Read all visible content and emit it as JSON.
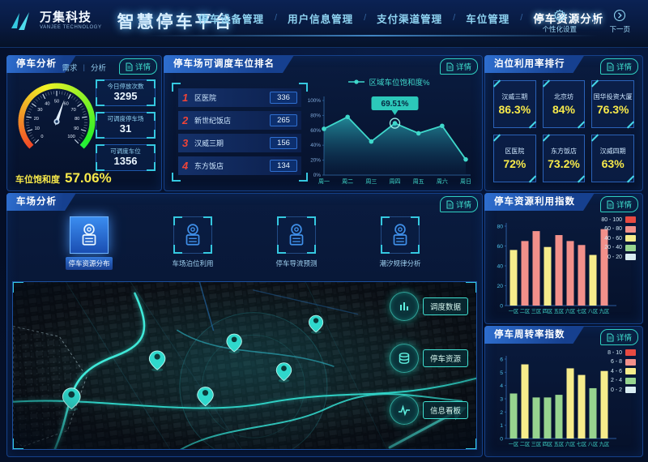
{
  "header": {
    "logo_text": "万集科技",
    "logo_sub": "VANJEE TECHNOLOGY",
    "platform_title": "智慧停车平台",
    "nav": [
      {
        "label": "停车设备管理",
        "active": false
      },
      {
        "label": "用户信息管理",
        "active": false
      },
      {
        "label": "支付渠道管理",
        "active": false
      },
      {
        "label": "车位管理",
        "active": false
      },
      {
        "label": "停车资源分析",
        "active": true
      }
    ],
    "settings_label": "个性化设置",
    "next_page_label": "下一页"
  },
  "panels": {
    "parking_analysis": {
      "title": "停车分析",
      "demand_link": "需求",
      "analysis_link": "分析",
      "detail_label": "详情",
      "stats": [
        {
          "label": "今日停放次数",
          "value": "3295"
        },
        {
          "label": "可调度停车场",
          "value": "31"
        },
        {
          "label": "可调度车位",
          "value": "1356"
        }
      ],
      "gauge_label": "车位饱和度",
      "gauge_value": "57.06%"
    },
    "dispatch_ranking": {
      "title": "停车场可调度车位排名",
      "detail_label": "详情",
      "rows": [
        {
          "rank": "1",
          "name": "区医院",
          "value": "336"
        },
        {
          "rank": "2",
          "name": "新世纪饭店",
          "value": "265"
        },
        {
          "rank": "3",
          "name": "汉威三期",
          "value": "156"
        },
        {
          "rank": "4",
          "name": "东方饭店",
          "value": "134"
        }
      ]
    },
    "berth_ranking": {
      "title": "泊位利用率排行",
      "detail_label": "详情",
      "cards": [
        {
          "name": "汉威三期",
          "value": "86.3%"
        },
        {
          "name": "北京坊",
          "value": "84%"
        },
        {
          "name": "国华投资大厦",
          "value": "76.3%"
        },
        {
          "name": "区医院",
          "value": "72%"
        },
        {
          "name": "东方饭店",
          "value": "73.2%"
        },
        {
          "name": "汉威四期",
          "value": "63%"
        }
      ]
    },
    "lot_analysis": {
      "title": "车场分析",
      "detail_label": "详情",
      "tabs": [
        {
          "label": "停车资源分布",
          "active": true
        },
        {
          "label": "车场泊位利用",
          "active": false
        },
        {
          "label": "停车导流预测",
          "active": false
        },
        {
          "label": "潮汐规律分析",
          "active": false
        }
      ],
      "map_buttons": [
        {
          "label": "调度数据",
          "icon": "bar-chart-icon"
        },
        {
          "label": "停车资源",
          "icon": "database-icon"
        },
        {
          "label": "信息看板",
          "icon": "pulse-icon"
        }
      ]
    },
    "resource_index": {
      "title": "停车资源利用指数",
      "detail_label": "详情"
    },
    "turnover_index": {
      "title": "停车周转率指数",
      "detail_label": "详情"
    }
  },
  "chart_data": [
    {
      "id": "saturation_gauge",
      "type": "gauge",
      "title": "车位饱和度",
      "value": 57.06,
      "min": 0,
      "max": 100,
      "unit": "%",
      "tick_labels": [
        0,
        10,
        20,
        30,
        40,
        50,
        60,
        70,
        80,
        90,
        100
      ]
    },
    {
      "id": "region_saturation",
      "type": "area",
      "title": "区域车位饱和度%",
      "legend_label": "区域车位饱和度%",
      "categories": [
        "周一",
        "周二",
        "周三",
        "周四",
        "周五",
        "周六",
        "周日"
      ],
      "values": [
        62,
        78,
        45,
        69.51,
        56,
        66,
        21
      ],
      "ylim": [
        0,
        100
      ],
      "ytick_labels": [
        "0%",
        "20%",
        "40%",
        "60%",
        "80%",
        "100%"
      ],
      "highlight": {
        "index": 3,
        "label": "69.51%"
      },
      "line_color": "#3fd8cb"
    },
    {
      "id": "resource_index",
      "type": "bar",
      "title": "停车资源利用指数",
      "categories": [
        "一区",
        "二区",
        "三区",
        "四区",
        "五区",
        "六区",
        "七区",
        "八区",
        "九区"
      ],
      "values": [
        56,
        65,
        75,
        59,
        71,
        65,
        61,
        51,
        77
      ],
      "colors": [
        "#f6ec8b",
        "#f2908a",
        "#f2908a",
        "#f6ec8b",
        "#f2908a",
        "#f2908a",
        "#f2908a",
        "#f6ec8b",
        "#f2908a"
      ],
      "ylim": [
        0,
        80
      ],
      "yticks": [
        0,
        20,
        40,
        60,
        80
      ],
      "legend": [
        {
          "label": "80 - 100",
          "color": "#e84a42"
        },
        {
          "label": "60 - 80",
          "color": "#f2908a"
        },
        {
          "label": "40 - 60",
          "color": "#f6ec8b"
        },
        {
          "label": "20 - 40",
          "color": "#97d48f"
        },
        {
          "label": "0 - 20",
          "color": "#d8ecf2"
        }
      ]
    },
    {
      "id": "turnover_index",
      "type": "bar",
      "title": "停车周转率指数",
      "categories": [
        "一区",
        "二区",
        "三区",
        "四区",
        "五区",
        "六区",
        "七区",
        "八区",
        "九区"
      ],
      "values": [
        3.4,
        5.6,
        3.1,
        3.1,
        3.3,
        5.3,
        4.8,
        3.8,
        5.1
      ],
      "colors": [
        "#97d48f",
        "#f6ec8b",
        "#97d48f",
        "#97d48f",
        "#97d48f",
        "#f6ec8b",
        "#f6ec8b",
        "#97d48f",
        "#f6ec8b"
      ],
      "ylim": [
        0,
        6
      ],
      "yticks": [
        0,
        1,
        2,
        3,
        4,
        5,
        6
      ],
      "legend": [
        {
          "label": "8 - 10",
          "color": "#e84a42"
        },
        {
          "label": "6 - 8",
          "color": "#f2908a"
        },
        {
          "label": "4 - 6",
          "color": "#f6ec8b"
        },
        {
          "label": "2 - 4",
          "color": "#97d48f"
        },
        {
          "label": "0 - 2",
          "color": "#d8ecf2"
        }
      ]
    }
  ],
  "colors": {
    "accent_teal": "#3fd8cb",
    "accent_yellow": "#f7e94a",
    "rank_red": "#e8473f",
    "panel_border": "#15418a"
  }
}
